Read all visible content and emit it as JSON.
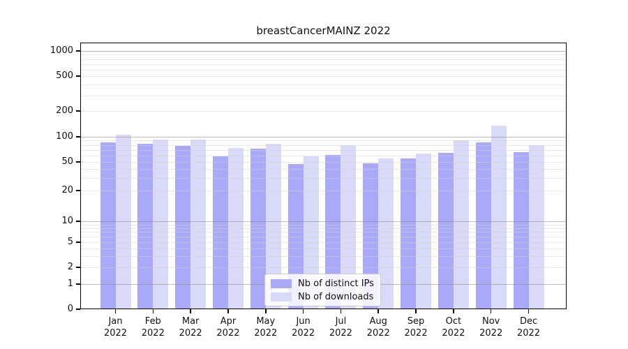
{
  "title": "breastCancerMAINZ 2022",
  "chart_data": {
    "type": "bar",
    "title": "breastCancerMAINZ 2022",
    "categories": [
      {
        "month": "Jan",
        "year": "2022"
      },
      {
        "month": "Feb",
        "year": "2022"
      },
      {
        "month": "Mar",
        "year": "2022"
      },
      {
        "month": "Apr",
        "year": "2022"
      },
      {
        "month": "May",
        "year": "2022"
      },
      {
        "month": "Jun",
        "year": "2022"
      },
      {
        "month": "Jul",
        "year": "2022"
      },
      {
        "month": "Aug",
        "year": "2022"
      },
      {
        "month": "Sep",
        "year": "2022"
      },
      {
        "month": "Oct",
        "year": "2022"
      },
      {
        "month": "Nov",
        "year": "2022"
      },
      {
        "month": "Dec",
        "year": "2022"
      }
    ],
    "series": [
      {
        "name": "Nb of distinct IPs",
        "color": "#a9a9f8",
        "values": [
          85,
          83,
          78,
          58,
          72,
          47,
          61,
          48,
          55,
          64,
          86,
          65
        ]
      },
      {
        "name": "Nb of downloads",
        "color": "#d9d9f8",
        "values": [
          105,
          93,
          93,
          74,
          83,
          58,
          79,
          55,
          63,
          91,
          135,
          80
        ]
      }
    ],
    "xlabel": "",
    "ylabel": "",
    "yscale": "symlog",
    "ytick_values": [
      0,
      1,
      2,
      5,
      10,
      20,
      50,
      100,
      200,
      500,
      1000
    ],
    "ylim": [
      0,
      1259
    ],
    "grid": true,
    "legend_position": "inside-bottom-center"
  },
  "legend": {
    "items": [
      {
        "label": "Nb of distinct IPs",
        "color": "#a9a9f8"
      },
      {
        "label": "Nb of downloads",
        "color": "#d9d9f8"
      }
    ]
  }
}
